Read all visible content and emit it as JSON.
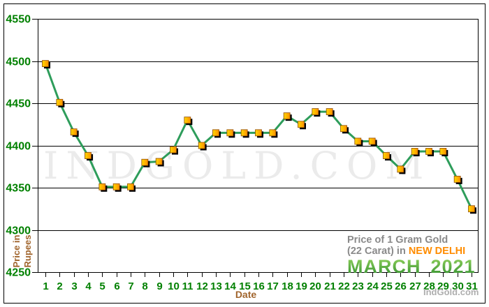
{
  "watermark": {
    "text": "INDGOLD.COM"
  },
  "credit": {
    "text": "IndGold.com"
  },
  "annotation": {
    "line1": "Price of 1 Gram Gold",
    "line2_prefix": "(22 Carat) in",
    "line2_city": "NEW DELHI",
    "month": "MARCH",
    "year": "2021"
  },
  "axes": {
    "y_title": "Price in Rupees",
    "x_title": "Date"
  },
  "chart_data": {
    "type": "line",
    "title": "Price of 1 Gram Gold (22 Carat) in NEW DELHI - MARCH 2021",
    "xlabel": "Date",
    "ylabel": "Price in Rupees",
    "x": [
      1,
      2,
      3,
      4,
      5,
      6,
      7,
      8,
      9,
      10,
      11,
      12,
      13,
      14,
      15,
      16,
      17,
      18,
      19,
      20,
      21,
      22,
      23,
      24,
      25,
      26,
      27,
      28,
      29,
      30,
      31
    ],
    "values": [
      4497,
      4451,
      4416,
      4388,
      4351,
      4351,
      4351,
      4380,
      4381,
      4395,
      4430,
      4400,
      4415,
      4415,
      4415,
      4415,
      4415,
      4435,
      4425,
      4440,
      4440,
      4420,
      4405,
      4405,
      4388,
      4372,
      4393,
      4393,
      4393,
      4360,
      4325
    ],
    "ylim": [
      4250,
      4550
    ],
    "y_ticks": [
      4550,
      4500,
      4450,
      4400,
      4350,
      4300,
      4250
    ],
    "grid": "horizontal-only",
    "legend": "none",
    "line_color": "#2e9d5b",
    "marker": {
      "shape": "square",
      "fill_light": "#ffd800",
      "fill_dark": "#ff9000",
      "border": "#8f4a00",
      "shadow": "#000000"
    },
    "tick_label_color": "#008000",
    "axis_color": "#000000"
  }
}
